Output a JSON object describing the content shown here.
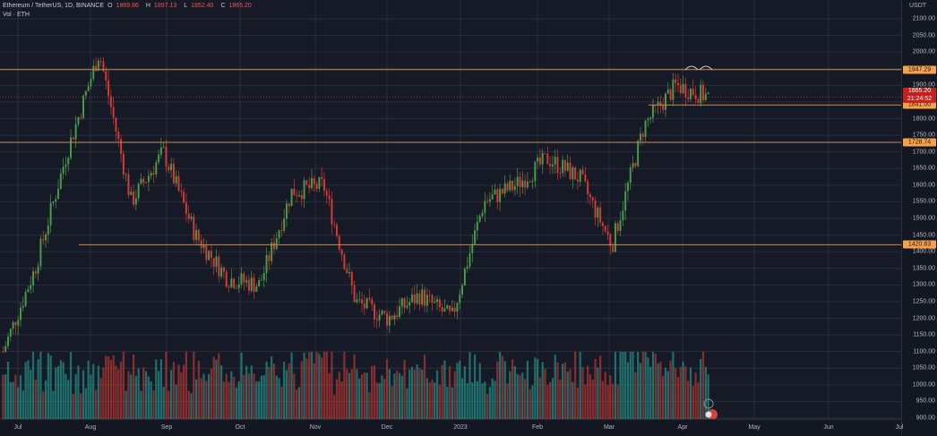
{
  "legend": {
    "symbol": "Ethereum / TetherUS, 1D, BINANCE",
    "ohlc": [
      {
        "key": "O",
        "value": "1869.86"
      },
      {
        "key": "H",
        "value": "1897.13"
      },
      {
        "key": "L",
        "value": "1852.40"
      },
      {
        "key": "C",
        "value": "1865.20"
      }
    ],
    "volume": "Vol · ETH"
  },
  "price_axis": {
    "unit": "USDT",
    "ticks": [
      "2100.00",
      "2050.00",
      "2000.00",
      "1900.00",
      "1800.00",
      "1750.00",
      "1700.00",
      "1650.00",
      "1600.00",
      "1550.00",
      "1500.00",
      "1450.00",
      "1400.00",
      "1350.00",
      "1300.00",
      "1250.00",
      "1200.00",
      "1150.00",
      "1100.00",
      "1050.00",
      "1000.00",
      "950.00",
      "900.00"
    ],
    "last_price": "1865.20",
    "countdown": "21:24:52"
  },
  "time_axis": {
    "labels": [
      "Jul",
      "Aug",
      "Sep",
      "Oct",
      "Nov",
      "Dec",
      "2023",
      "Feb",
      "Mar",
      "Apr",
      "May",
      "Jun",
      "Jul"
    ]
  },
  "levels": [
    {
      "price": 1947.29,
      "label": "1947.29",
      "x_start": 0
    },
    {
      "price": 1841.0,
      "label": "1841.00",
      "x_start": 724
    },
    {
      "price": 1728.74,
      "label": "1728.74",
      "x_start": 0
    },
    {
      "price": 1420.83,
      "label": "1420.83",
      "x_start": 88
    }
  ],
  "colors": {
    "background": "#151a26",
    "grid": "#2a2e39",
    "up": "#26a69a",
    "up_candle": "#4c9a4a",
    "down": "#d63a34",
    "level_line": "#c98a52",
    "level_tag": "#f7a24b",
    "last_price_tag": "#c4201c"
  },
  "chart_data": {
    "type": "candlestick",
    "title": "Ethereum / TetherUS, 1D, BINANCE",
    "xlabel": "",
    "ylabel": "USDT",
    "ylim": [
      900,
      2100
    ],
    "x_tick_labels": [
      "Jul",
      "Aug",
      "Sep",
      "Oct",
      "Nov",
      "Dec",
      "2023",
      "Feb",
      "Mar",
      "Apr",
      "May",
      "Jun",
      "Jul"
    ],
    "horizontal_levels": [
      1947.29,
      1841.0,
      1728.74,
      1420.83
    ],
    "last_price": 1865.2,
    "countdown": "21:24:52",
    "ohlc_current": {
      "open": 1869.86,
      "high": 1897.13,
      "low": 1852.4,
      "close": 1865.2
    },
    "approx_daily_closes": [
      {
        "period": "Jun-end 2022",
        "close": 1100
      },
      {
        "period": "Jul mid",
        "close": 1350
      },
      {
        "period": "Jul end",
        "close": 1700
      },
      {
        "period": "Aug mid",
        "close": 2000
      },
      {
        "period": "Aug end",
        "close": 1550
      },
      {
        "period": "Sep start",
        "close": 1700
      },
      {
        "period": "Sep mid",
        "close": 1450
      },
      {
        "period": "Sep end",
        "close": 1320
      },
      {
        "period": "Oct mid",
        "close": 1300
      },
      {
        "period": "Oct end",
        "close": 1580
      },
      {
        "period": "Nov start",
        "close": 1600
      },
      {
        "period": "Nov mid",
        "close": 1250
      },
      {
        "period": "Nov end",
        "close": 1200
      },
      {
        "period": "Dec mid",
        "close": 1270
      },
      {
        "period": "Dec end",
        "close": 1200
      },
      {
        "period": "Jan mid 2023",
        "close": 1550
      },
      {
        "period": "Jan end",
        "close": 1600
      },
      {
        "period": "Feb mid",
        "close": 1680
      },
      {
        "period": "Feb end",
        "close": 1620
      },
      {
        "period": "Mar 10",
        "close": 1420
      },
      {
        "period": "Mar end",
        "close": 1780
      },
      {
        "period": "Apr start",
        "close": 1900
      },
      {
        "period": "Apr current",
        "close": 1865.2
      }
    ]
  }
}
